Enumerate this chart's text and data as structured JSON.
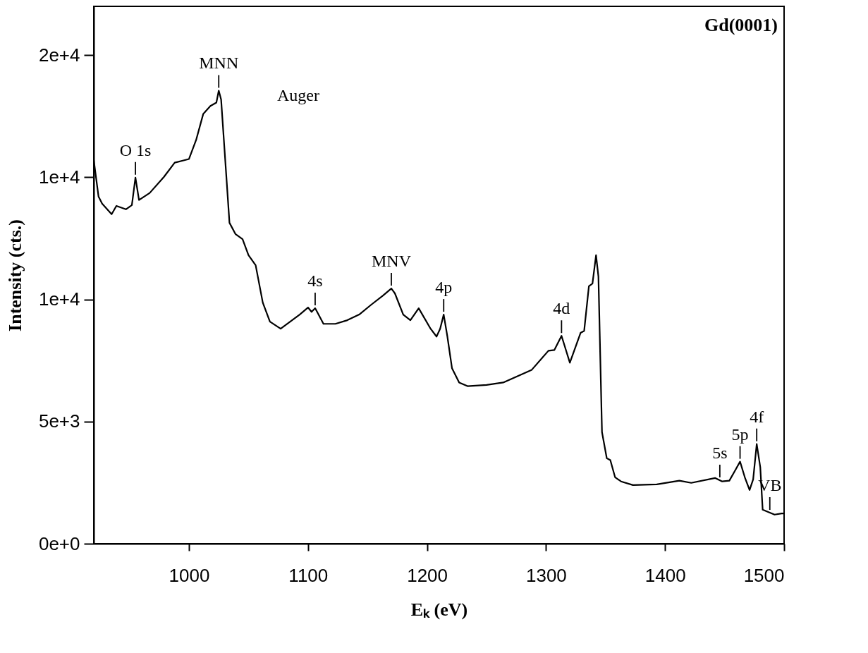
{
  "chart_data": {
    "type": "line",
    "title": "Gd(0001)",
    "xlabel": "Eₖ (eV)",
    "ylabel": "Intensity (cts.)",
    "xlim": [
      920,
      1500
    ],
    "xticks": [
      1000,
      1100,
      1200,
      1300,
      1400,
      1500
    ],
    "ylim": [
      0,
      22000
    ],
    "yticks": [
      {
        "value": 0,
        "label": "0e+0"
      },
      {
        "value": 5000,
        "label": "5e+3"
      },
      {
        "value": 10000,
        "label": "1e+4"
      },
      {
        "value": 15000,
        "label": "1e+4"
      },
      {
        "value": 20000,
        "label": "2e+4"
      }
    ],
    "grid": false,
    "marker": "none",
    "line_style": "solid",
    "series": [
      {
        "color": "#000000",
        "x": [
          920,
          924,
          927,
          935,
          939,
          947,
          952,
          955,
          958,
          967,
          979,
          988,
          1000,
          1006,
          1012,
          1018,
          1023,
          1025,
          1027,
          1032,
          1034,
          1039,
          1045,
          1050,
          1056,
          1062,
          1068,
          1077,
          1085,
          1093,
          1100,
          1103,
          1106,
          1113,
          1123,
          1133,
          1143,
          1153,
          1163,
          1170,
          1173,
          1180,
          1186,
          1193,
          1203,
          1208,
          1211,
          1214,
          1217,
          1221,
          1227,
          1234,
          1250,
          1264,
          1288,
          1302,
          1307,
          1313,
          1320,
          1329,
          1332,
          1336,
          1339,
          1342,
          1344,
          1346,
          1347,
          1351,
          1354,
          1358,
          1363,
          1373,
          1393,
          1412,
          1422,
          1442,
          1448,
          1454,
          1459,
          1463,
          1467,
          1471,
          1474,
          1477,
          1480,
          1482,
          1488,
          1492,
          1498,
          1500
        ],
        "values": [
          15700,
          14210,
          13920,
          13490,
          13830,
          13690,
          13860,
          14990,
          14070,
          14360,
          15020,
          15600,
          15750,
          16530,
          17600,
          17920,
          18060,
          18550,
          18180,
          14590,
          13140,
          12680,
          12470,
          11810,
          11400,
          9870,
          9090,
          8800,
          9090,
          9380,
          9670,
          9490,
          9640,
          9000,
          9000,
          9150,
          9380,
          9780,
          10160,
          10450,
          10250,
          9380,
          9150,
          9640,
          8800,
          8480,
          8800,
          9380,
          8510,
          7180,
          6600,
          6450,
          6500,
          6600,
          7120,
          7900,
          7930,
          8510,
          7410,
          8630,
          8710,
          10540,
          10650,
          11810,
          10940,
          6690,
          4570,
          3500,
          3420,
          2720,
          2550,
          2400,
          2430,
          2580,
          2490,
          2690,
          2550,
          2580,
          3010,
          3360,
          2720,
          2200,
          2630,
          4080,
          3130,
          1390,
          1270,
          1190,
          1240,
          1240
        ]
      }
    ],
    "annotations": [
      {
        "text": "O 1s",
        "x": 955,
        "y": 14990
      },
      {
        "text": "MNN",
        "x": 1025,
        "y": 18550
      },
      "Auger",
      {
        "text": "4s",
        "x": 1106,
        "y": 9640
      },
      {
        "text": "MNV",
        "x": 1170,
        "y": 10450
      },
      {
        "text": "4p",
        "x": 1214,
        "y": 9380
      },
      {
        "text": "4d",
        "x": 1313,
        "y": 8510
      },
      {
        "text": "5s",
        "x": 1446,
        "y": 2600
      },
      {
        "text": "5p",
        "x": 1463,
        "y": 3360
      },
      {
        "text": "4f",
        "x": 1477,
        "y": 4080
      },
      {
        "text": "VB",
        "x": 1488,
        "y": 1270
      }
    ]
  }
}
